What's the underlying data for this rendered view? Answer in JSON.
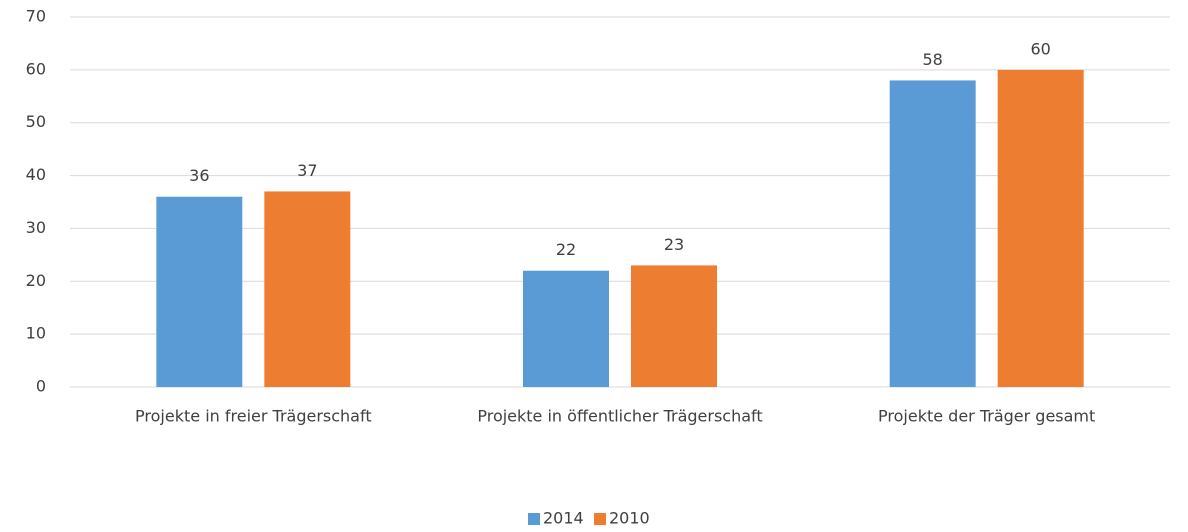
{
  "chart_data": {
    "type": "bar",
    "categories": [
      "Projekte in freier Trägerschaft",
      "Projekte in öffentlicher Trägerschaft",
      "Projekte der Träger gesamt"
    ],
    "series": [
      {
        "name": "2014",
        "color": "#5b9bd5",
        "values": [
          36,
          22,
          58
        ]
      },
      {
        "name": "2010",
        "color": "#ed7d31",
        "values": [
          37,
          23,
          60
        ]
      }
    ],
    "ylim": [
      0,
      70
    ],
    "yticks": [
      0,
      10,
      20,
      30,
      40,
      50,
      60,
      70
    ],
    "grid": true,
    "legend": "bottom"
  }
}
